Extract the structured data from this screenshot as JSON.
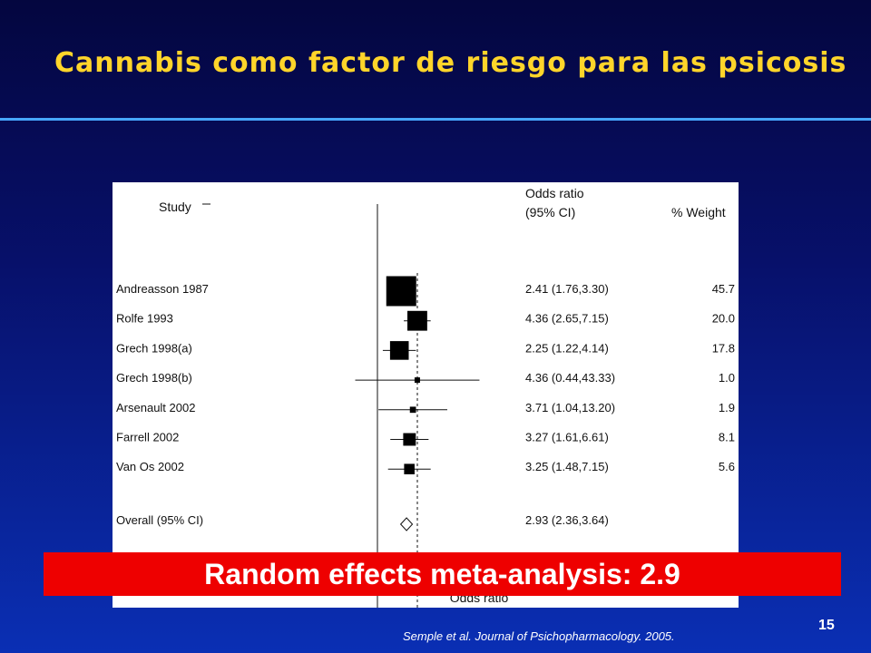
{
  "slide": {
    "title": "Cannabis como factor de riesgo para las psicosis",
    "banner": "Random effects meta-analysis: 2.9",
    "citation": "Semple et al. Journal of Psichopharmacology. 2005.",
    "page_number": "15"
  },
  "colors": {
    "title": "#ffd52a",
    "background_top": "#04063f",
    "background_bottom": "#0a2fb4",
    "rule": "#47a8ff",
    "banner": "#ee0000"
  },
  "chart_data": {
    "type": "forest",
    "headers": {
      "study": "Study",
      "or_line1": "Odds ratio",
      "or_line2": "(95% CI)",
      "weight": "% Weight"
    },
    "xlabel": "Odds ratio",
    "null_line": 1,
    "pooled_line": 2.93,
    "studies": [
      {
        "label": "Andreasson 1987",
        "or": 2.41,
        "lo": 1.76,
        "hi": 3.3,
        "ci_text": "2.41 (1.76,3.30)",
        "weight": 45.7,
        "weight_text": "45.7"
      },
      {
        "label": "Rolfe 1993",
        "or": 4.36,
        "lo": 2.65,
        "hi": 7.15,
        "ci_text": "4.36 (2.65,7.15)",
        "weight": 20.0,
        "weight_text": "20.0"
      },
      {
        "label": "Grech 1998(a)",
        "or": 2.25,
        "lo": 1.22,
        "hi": 4.14,
        "ci_text": "2.25 (1.22,4.14)",
        "weight": 17.8,
        "weight_text": "17.8"
      },
      {
        "label": "Grech 1998(b)",
        "or": 4.36,
        "lo": 0.44,
        "hi": 43.33,
        "ci_text": "4.36 (0.44,43.33)",
        "weight": 1.0,
        "weight_text": "1.0"
      },
      {
        "label": "Arsenault 2002",
        "or": 3.71,
        "lo": 1.04,
        "hi": 13.2,
        "ci_text": "3.71 (1.04,13.20)",
        "weight": 1.9,
        "weight_text": "1.9"
      },
      {
        "label": "Farrell 2002",
        "or": 3.27,
        "lo": 1.61,
        "hi": 6.61,
        "ci_text": "3.27 (1.61,6.61)",
        "weight": 8.1,
        "weight_text": "8.1"
      },
      {
        "label": "Van Os 2002",
        "or": 3.25,
        "lo": 1.48,
        "hi": 7.15,
        "ci_text": "3.25 (1.48,7.15)",
        "weight": 5.6,
        "weight_text": "5.6"
      }
    ],
    "overall": {
      "label": "Overall (95% CI)",
      "or": 2.93,
      "lo": 2.36,
      "hi": 3.64,
      "ci_text": "2.93 (2.36,3.64)"
    }
  }
}
